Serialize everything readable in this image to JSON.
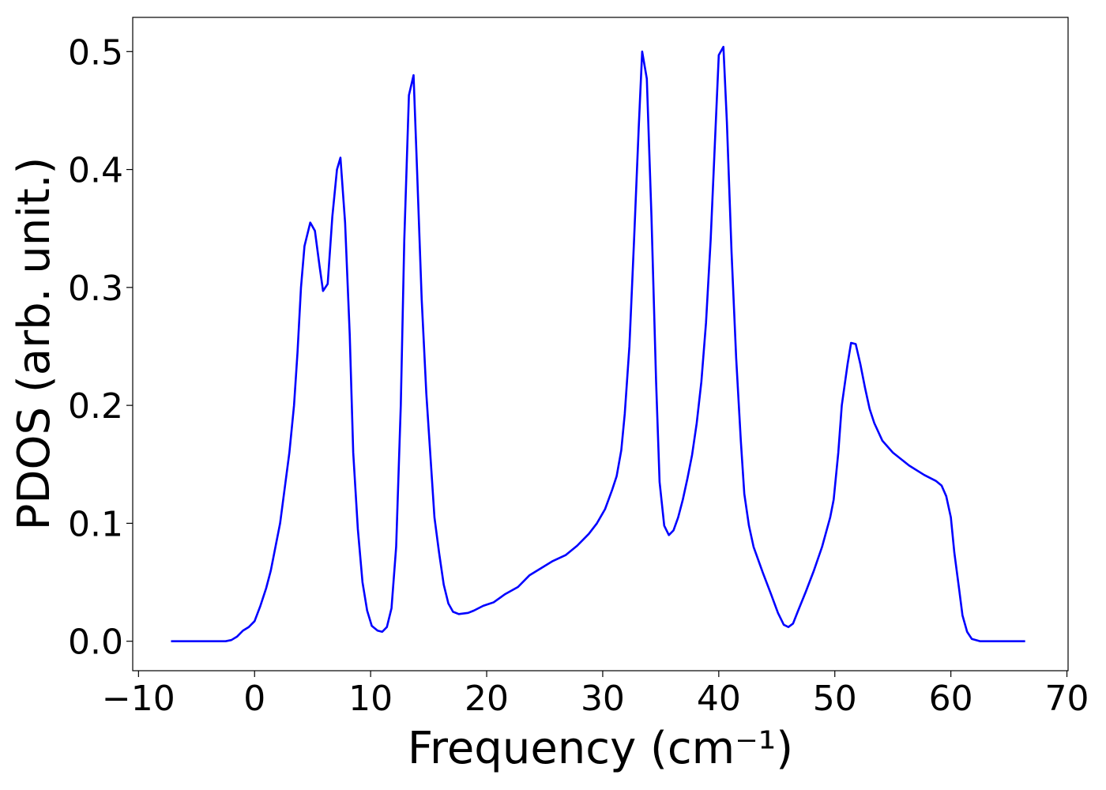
{
  "chart_data": {
    "type": "line",
    "xlabel": "Frequency (cm⁻¹)",
    "ylabel": "PDOS (arb. unit.)",
    "color": "#0000ff",
    "xlim": [
      -10.5,
      70.1
    ],
    "ylim": [
      -0.025,
      0.529
    ],
    "xticks": [
      {
        "value": -10,
        "label": "−10"
      },
      0,
      10,
      20,
      30,
      40,
      50,
      60,
      70
    ],
    "yticks": [
      {
        "value": 0,
        "label": "0.0"
      },
      0.1,
      0.2,
      0.3,
      0.4,
      0.5
    ],
    "x": [
      -7.2,
      -2.5,
      -2,
      -1.5,
      -1,
      -0.5,
      0,
      0.5,
      1,
      1.4,
      1.8,
      2.2,
      2.6,
      3.0,
      3.4,
      3.7,
      4.0,
      4.3,
      4.8,
      5.2,
      5.6,
      5.9,
      6.3,
      6.7,
      7.1,
      7.4,
      7.8,
      8.2,
      8.5,
      8.9,
      9.3,
      9.7,
      10.1,
      10.6,
      11.0,
      11.4,
      11.8,
      12.2,
      12.6,
      12.9,
      13.3,
      13.7,
      14.0,
      14.4,
      14.8,
      15.2,
      15.5,
      15.9,
      16.3,
      16.7,
      17.1,
      17.6,
      18.4,
      18.9,
      19.7,
      20.6,
      21.6,
      22.7,
      23.7,
      24.7,
      25.7,
      26.8,
      27.8,
      28.8,
      29.5,
      30.2,
      30.8,
      31.2,
      31.6,
      31.9,
      32.3,
      32.7,
      33.1,
      33.4,
      33.8,
      34.2,
      34.6,
      34.9,
      35.3,
      35.7,
      36.1,
      36.5,
      36.9,
      37.3,
      37.7,
      38.1,
      38.5,
      38.9,
      39.3,
      39.7,
      40.0,
      40.4,
      40.7,
      41.1,
      41.5,
      41.9,
      42.2,
      42.6,
      43.0,
      43.8,
      44.5,
      45.1,
      45.6,
      46.0,
      46.4,
      46.8,
      47.5,
      48.2,
      48.9,
      49.6,
      49.9,
      50.3,
      50.6,
      51.1,
      51.4,
      51.8,
      52.2,
      52.6,
      53.0,
      53.4,
      54.1,
      55.0,
      56.4,
      57.7,
      58.7,
      59.2,
      59.6,
      60.0,
      60.3,
      60.7,
      61.0,
      61.4,
      61.8,
      62.5,
      66.4
    ],
    "values": [
      0,
      0,
      0.001,
      0.004,
      0.009,
      0.012,
      0.017,
      0.03,
      0.045,
      0.06,
      0.08,
      0.1,
      0.13,
      0.16,
      0.2,
      0.245,
      0.3,
      0.335,
      0.355,
      0.348,
      0.318,
      0.297,
      0.303,
      0.36,
      0.4,
      0.41,
      0.355,
      0.26,
      0.16,
      0.095,
      0.05,
      0.026,
      0.013,
      0.009,
      0.008,
      0.012,
      0.028,
      0.08,
      0.2,
      0.34,
      0.463,
      0.48,
      0.4,
      0.29,
      0.21,
      0.15,
      0.105,
      0.075,
      0.048,
      0.032,
      0.025,
      0.023,
      0.024,
      0.026,
      0.03,
      0.033,
      0.04,
      0.046,
      0.056,
      0.062,
      0.068,
      0.073,
      0.081,
      0.091,
      0.1,
      0.112,
      0.128,
      0.14,
      0.162,
      0.193,
      0.25,
      0.34,
      0.435,
      0.5,
      0.477,
      0.36,
      0.22,
      0.135,
      0.098,
      0.09,
      0.094,
      0.105,
      0.12,
      0.138,
      0.158,
      0.185,
      0.22,
      0.27,
      0.34,
      0.43,
      0.497,
      0.504,
      0.44,
      0.33,
      0.24,
      0.17,
      0.125,
      0.098,
      0.08,
      0.058,
      0.04,
      0.024,
      0.014,
      0.012,
      0.015,
      0.025,
      0.042,
      0.06,
      0.08,
      0.105,
      0.12,
      0.16,
      0.2,
      0.235,
      0.253,
      0.252,
      0.235,
      0.215,
      0.197,
      0.185,
      0.17,
      0.16,
      0.149,
      0.141,
      0.136,
      0.132,
      0.123,
      0.105,
      0.075,
      0.045,
      0.022,
      0.008,
      0.002,
      0,
      0
    ]
  }
}
